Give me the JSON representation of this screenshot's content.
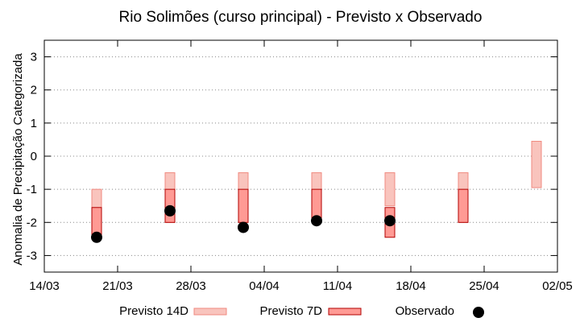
{
  "chart_data": {
    "type": "range-bar",
    "title": "Rio Solimões (curso principal) - Previsto x Observado",
    "xlabel": "",
    "ylabel": "Anomalia de Precipitação Categorizada",
    "ylim": [
      -3.5,
      3.5
    ],
    "yticks": [
      3,
      2,
      1,
      0,
      -1,
      -2,
      -3
    ],
    "ytick_labels": [
      "3",
      "2",
      "1",
      "0",
      "-1",
      "-2",
      "-3"
    ],
    "xticks": [
      "14/03",
      "21/03",
      "28/03",
      "04/04",
      "11/04",
      "18/04",
      "25/04",
      "02/05"
    ],
    "grid": true,
    "grid_style": "dotted horizontal",
    "legend_position": "bottom",
    "series": [
      {
        "name": "Previsto 14D",
        "kind": "range",
        "color": "#f9c4bd",
        "edge": "#f08a80",
        "dates": [
          "21/03",
          "28/03",
          "04/04",
          "11/04",
          "18/04",
          "25/04",
          "02/05"
        ],
        "low": [
          -2.0,
          -2.0,
          -2.0,
          -2.0,
          -1.5,
          -2.0,
          -0.95
        ],
        "high": [
          -1.0,
          -0.5,
          -0.5,
          -0.5,
          -0.5,
          -0.5,
          0.45
        ]
      },
      {
        "name": "Previsto 7D",
        "kind": "range",
        "color": "#ff9a94",
        "edge": "#b00000",
        "dates": [
          "21/03",
          "28/03",
          "04/04",
          "11/04",
          "18/04",
          "25/04"
        ],
        "low": [
          -2.5,
          -2.0,
          -2.0,
          -2.0,
          -2.45,
          -2.0
        ],
        "high": [
          -1.55,
          -1.0,
          -1.0,
          -1.0,
          -1.55,
          -1.0
        ]
      },
      {
        "name": "Observado",
        "kind": "point",
        "color": "#000000",
        "dates": [
          "21/03",
          "28/03",
          "04/04",
          "11/04",
          "18/04"
        ],
        "values": [
          -2.45,
          -1.65,
          -2.15,
          -1.95,
          -1.95
        ]
      }
    ]
  }
}
